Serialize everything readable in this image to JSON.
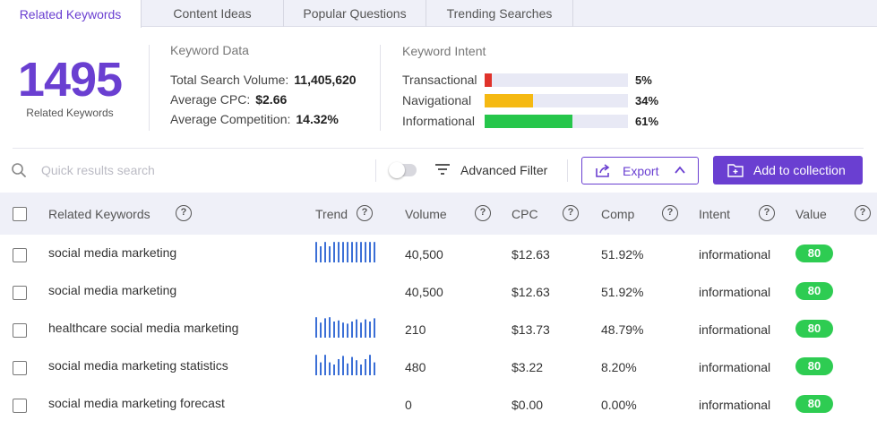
{
  "tabs": [
    {
      "label": "Related Keywords",
      "active": true
    },
    {
      "label": "Content Ideas",
      "active": false
    },
    {
      "label": "Popular Questions",
      "active": false
    },
    {
      "label": "Trending Searches",
      "active": false
    }
  ],
  "summary": {
    "count": "1495",
    "count_label": "Related Keywords"
  },
  "keyword_data": {
    "title": "Keyword Data",
    "total_search_volume_label": "Total Search Volume:",
    "total_search_volume": "11,405,620",
    "average_cpc_label": "Average CPC:",
    "average_cpc": "$2.66",
    "average_competition_label": "Average Competition:",
    "average_competition": "14.32%"
  },
  "keyword_intent": {
    "title": "Keyword Intent",
    "items": [
      {
        "label": "Transactional",
        "pct": "5%",
        "fraction": 0.05,
        "color": "#e0332b"
      },
      {
        "label": "Navigational",
        "pct": "34%",
        "fraction": 0.34,
        "color": "#f5b912"
      },
      {
        "label": "Informational",
        "pct": "61%",
        "fraction": 0.61,
        "color": "#26c64b"
      }
    ]
  },
  "toolbar": {
    "search_placeholder": "Quick results search",
    "filter_label": "Advanced Filter",
    "export_label": "Export",
    "collection_label": "Add to collection"
  },
  "table": {
    "headers": {
      "keyword": "Related Keywords",
      "trend": "Trend",
      "volume": "Volume",
      "cpc": "CPC",
      "comp": "Comp",
      "intent": "Intent",
      "value": "Value"
    },
    "rows": [
      {
        "keyword": "social media marketing",
        "volume": "40,500",
        "cpc": "$12.63",
        "comp": "51.92%",
        "intent": "informational",
        "value": "80",
        "trend": [
          0.95,
          0.75,
          0.95,
          0.75,
          0.95,
          0.95,
          0.95,
          0.95,
          0.95,
          0.95,
          0.95,
          0.95,
          0.95,
          0.95
        ]
      },
      {
        "keyword": "social media marketing",
        "volume": "40,500",
        "cpc": "$12.63",
        "comp": "51.92%",
        "intent": "informational",
        "value": "80",
        "trend": []
      },
      {
        "keyword": "healthcare social media marketing",
        "volume": "210",
        "cpc": "$13.73",
        "comp": "48.79%",
        "intent": "informational",
        "value": "80",
        "trend": [
          0.95,
          0.7,
          0.9,
          0.95,
          0.75,
          0.8,
          0.7,
          0.65,
          0.75,
          0.85,
          0.7,
          0.85,
          0.75,
          0.9
        ]
      },
      {
        "keyword": "social media marketing statistics",
        "volume": "480",
        "cpc": "$3.22",
        "comp": "8.20%",
        "intent": "informational",
        "value": "80",
        "trend": [
          0.95,
          0.6,
          0.95,
          0.6,
          0.5,
          0.75,
          0.9,
          0.55,
          0.85,
          0.7,
          0.5,
          0.75,
          0.95,
          0.6
        ]
      },
      {
        "keyword": "social media marketing forecast",
        "volume": "0",
        "cpc": "$0.00",
        "comp": "0.00%",
        "intent": "informational",
        "value": "80",
        "trend": []
      }
    ]
  },
  "colors": {
    "accent": "#6a3fd1",
    "trend_bar": "#3b6fd6",
    "value_badge": "#2ecc52"
  }
}
